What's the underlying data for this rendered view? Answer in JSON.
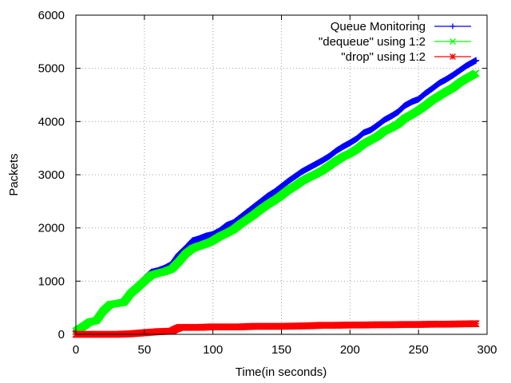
{
  "chart_data": {
    "type": "line",
    "title": "",
    "xlabel": "Time(in seconds)",
    "ylabel": "Packets",
    "xlim": [
      0,
      300
    ],
    "ylim": [
      0,
      6000
    ],
    "x_ticks": [
      0,
      50,
      100,
      150,
      200,
      250,
      300
    ],
    "y_ticks": [
      0,
      1000,
      2000,
      3000,
      4000,
      5000,
      6000
    ],
    "grid": true,
    "legend_position": "top-right",
    "series": [
      {
        "name": "Queue Monitoring",
        "color": "#0000ff",
        "marker": "plus",
        "x": [
          0,
          5,
          10,
          15,
          20,
          25,
          30,
          35,
          40,
          45,
          50,
          55,
          60,
          65,
          70,
          75,
          80,
          85,
          90,
          95,
          100,
          105,
          110,
          115,
          120,
          125,
          130,
          135,
          140,
          145,
          150,
          155,
          160,
          165,
          170,
          175,
          180,
          185,
          190,
          195,
          200,
          205,
          210,
          215,
          220,
          225,
          230,
          235,
          240,
          245,
          250,
          255,
          260,
          265,
          270,
          275,
          280,
          285,
          292
        ],
        "y": [
          60,
          150,
          240,
          270,
          450,
          560,
          590,
          620,
          800,
          920,
          1050,
          1170,
          1200,
          1250,
          1320,
          1500,
          1620,
          1760,
          1800,
          1850,
          1880,
          1950,
          2050,
          2100,
          2200,
          2300,
          2400,
          2500,
          2600,
          2680,
          2780,
          2880,
          2970,
          3060,
          3130,
          3200,
          3270,
          3350,
          3450,
          3530,
          3600,
          3680,
          3790,
          3840,
          3930,
          4030,
          4100,
          4180,
          4300,
          4370,
          4420,
          4530,
          4620,
          4720,
          4790,
          4870,
          4960,
          5050,
          5150
        ]
      },
      {
        "name": "\"dequeue\" using 1:2",
        "color": "#00ff00",
        "marker": "cross",
        "x": [
          0,
          5,
          10,
          15,
          20,
          25,
          30,
          35,
          40,
          45,
          50,
          55,
          60,
          65,
          70,
          75,
          80,
          85,
          90,
          95,
          100,
          105,
          110,
          115,
          120,
          125,
          130,
          135,
          140,
          145,
          150,
          155,
          160,
          165,
          170,
          175,
          180,
          185,
          190,
          195,
          200,
          205,
          210,
          215,
          220,
          225,
          230,
          235,
          240,
          245,
          250,
          255,
          260,
          265,
          270,
          275,
          280,
          285,
          292
        ],
        "y": [
          60,
          140,
          230,
          260,
          440,
          560,
          580,
          600,
          770,
          880,
          1000,
          1110,
          1150,
          1180,
          1230,
          1360,
          1510,
          1610,
          1660,
          1700,
          1760,
          1840,
          1900,
          1970,
          2070,
          2160,
          2250,
          2350,
          2440,
          2520,
          2610,
          2710,
          2790,
          2880,
          2950,
          3010,
          3080,
          3170,
          3260,
          3340,
          3400,
          3480,
          3580,
          3650,
          3720,
          3820,
          3880,
          3950,
          4060,
          4130,
          4210,
          4300,
          4400,
          4480,
          4560,
          4630,
          4730,
          4810,
          4910
        ]
      },
      {
        "name": "\"drop\" using 1:2",
        "color": "#ff0000",
        "marker": "star",
        "x": [
          0,
          10,
          20,
          30,
          40,
          50,
          60,
          70,
          73,
          76,
          80,
          90,
          100,
          110,
          120,
          130,
          140,
          150,
          160,
          170,
          180,
          190,
          200,
          210,
          220,
          230,
          240,
          250,
          260,
          270,
          280,
          292
        ],
        "y": [
          0,
          0,
          0,
          0,
          10,
          30,
          50,
          60,
          100,
          130,
          130,
          130,
          140,
          140,
          140,
          150,
          150,
          150,
          155,
          160,
          170,
          170,
          175,
          175,
          180,
          180,
          185,
          185,
          190,
          190,
          195,
          200
        ]
      }
    ]
  }
}
